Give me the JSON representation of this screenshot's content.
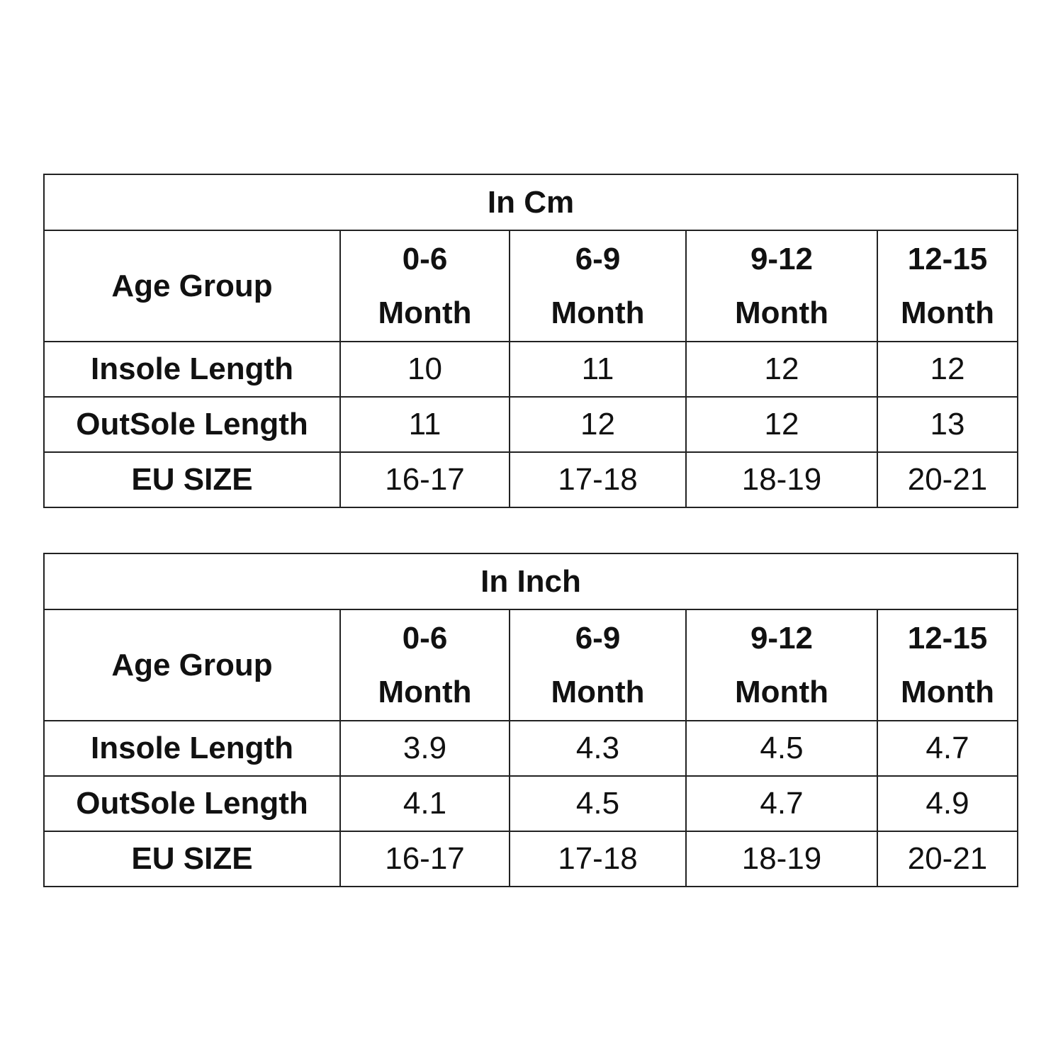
{
  "tables": [
    {
      "title": "In Cm",
      "header": {
        "label": "Age Group",
        "columns": [
          [
            "0-6",
            "Month"
          ],
          [
            "6-9",
            "Month"
          ],
          [
            "9-12",
            "Month"
          ],
          [
            "12-15",
            "Month"
          ]
        ]
      },
      "rows": [
        {
          "label": "Insole Length",
          "cells": [
            "10",
            "11",
            "12",
            "12"
          ]
        },
        {
          "label": "OutSole Length",
          "cells": [
            "11",
            "12",
            "12",
            "13"
          ]
        },
        {
          "label": "EU SIZE",
          "cells": [
            "16-17",
            "17-18",
            "18-19",
            "20-21"
          ]
        }
      ]
    },
    {
      "title": "In Inch",
      "header": {
        "label": "Age Group",
        "columns": [
          [
            "0-6",
            "Month"
          ],
          [
            "6-9",
            "Month"
          ],
          [
            "9-12",
            "Month"
          ],
          [
            "12-15",
            "Month"
          ]
        ]
      },
      "rows": [
        {
          "label": "Insole Length",
          "cells": [
            "3.9",
            "4.3",
            "4.5",
            "4.7"
          ]
        },
        {
          "label": "OutSole Length",
          "cells": [
            "4.1",
            "4.5",
            "4.7",
            "4.9"
          ]
        },
        {
          "label": "EU SIZE",
          "cells": [
            "16-17",
            "17-18",
            "18-19",
            "20-21"
          ]
        }
      ]
    }
  ]
}
